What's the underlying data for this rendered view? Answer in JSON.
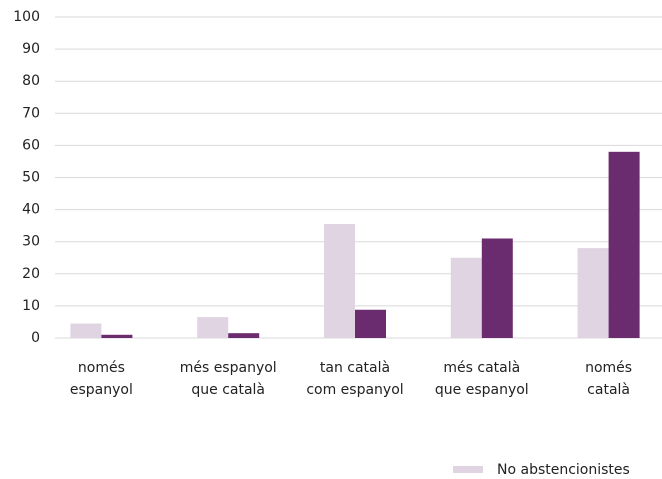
{
  "chart_data": {
    "type": "bar",
    "categories": [
      [
        "només",
        "espanyol"
      ],
      [
        "més espanyol",
        "que català"
      ],
      [
        "tan català",
        "com espanyol"
      ],
      [
        "més català",
        "que espanyol"
      ],
      [
        "només",
        "català"
      ]
    ],
    "series": [
      {
        "name": "No abstencionistes",
        "color": "#e0d3e2",
        "values": [
          4.5,
          6.5,
          35.5,
          25,
          28
        ]
      },
      {
        "color": "#6a2c6e",
        "values": [
          1,
          1.5,
          8.8,
          31,
          58
        ]
      }
    ],
    "ylim": [
      0,
      100
    ],
    "yticks": [
      0,
      10,
      20,
      30,
      40,
      50,
      60,
      70,
      80,
      90,
      100
    ],
    "grid": true,
    "legend": "bottom-right"
  }
}
